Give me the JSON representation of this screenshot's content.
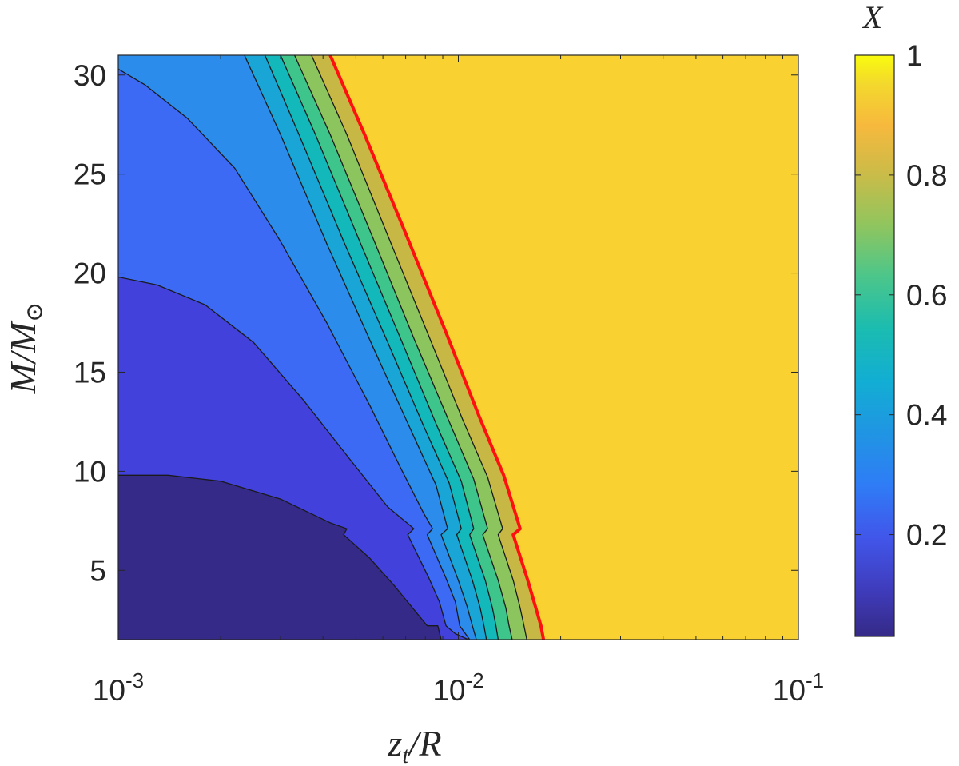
{
  "chart_data": {
    "type": "heatmap",
    "subtype": "filled-contour",
    "x_scale": "log",
    "xlim": [
      0.001,
      0.1
    ],
    "ylim": [
      1.5,
      31
    ],
    "xlabel_parts": [
      "z",
      "t",
      "/R"
    ],
    "ylabel_parts": [
      "M/M",
      "⊙"
    ],
    "colorbar_label": "X",
    "x_ticks": [
      {
        "value": 0.001,
        "base": "10",
        "exp": "-3"
      },
      {
        "value": 0.01,
        "base": "10",
        "exp": "-2"
      },
      {
        "value": 0.1,
        "base": "10",
        "exp": "-1"
      }
    ],
    "y_ticks": [
      {
        "value": 5,
        "label": "5"
      },
      {
        "value": 10,
        "label": "10"
      },
      {
        "value": 15,
        "label": "15"
      },
      {
        "value": 20,
        "label": "20"
      },
      {
        "value": 25,
        "label": "25"
      },
      {
        "value": 30,
        "label": "30"
      }
    ],
    "colorbar_ticks": [
      {
        "value": 0.2,
        "label": "0.2"
      },
      {
        "value": 0.4,
        "label": "0.4"
      },
      {
        "value": 0.6,
        "label": "0.6"
      },
      {
        "value": 0.8,
        "label": "0.8"
      },
      {
        "value": 1,
        "label": "1"
      }
    ],
    "colorbar_range": [
      0.03,
      1.0
    ],
    "colormap": "parula",
    "levels": [
      {
        "x_value": 0.02,
        "color": "#352a87"
      },
      {
        "x_value": 0.1,
        "color": "#4241dc"
      },
      {
        "x_value": 0.2,
        "color": "#3c6af5"
      },
      {
        "x_value": 0.3,
        "color": "#2b8ceb"
      },
      {
        "x_value": 0.4,
        "color": "#19a6d6"
      },
      {
        "x_value": 0.5,
        "color": "#12b8ba"
      },
      {
        "x_value": 0.6,
        "color": "#3ec58c"
      },
      {
        "x_value": 0.7,
        "color": "#8cc45e"
      },
      {
        "x_value": 0.8,
        "color": "#c7b845"
      },
      {
        "x_value": 0.9,
        "color": "#f9d130"
      }
    ],
    "contours": [
      {
        "level": 0.1,
        "points": [
          [
            0.001,
            9.8
          ],
          [
            0.0014,
            9.8
          ],
          [
            0.002,
            9.5
          ],
          [
            0.003,
            8.6
          ],
          [
            0.0042,
            7.4
          ],
          [
            0.0047,
            7.1
          ],
          [
            0.0046,
            6.8
          ],
          [
            0.0055,
            5.6
          ],
          [
            0.0065,
            4.2
          ],
          [
            0.0075,
            2.9
          ],
          [
            0.0081,
            2.2
          ],
          [
            0.0087,
            2.2
          ],
          [
            0.0089,
            1.5
          ]
        ]
      },
      {
        "level": 0.2,
        "points": [
          [
            0.001,
            19.8
          ],
          [
            0.0013,
            19.4
          ],
          [
            0.0018,
            18.4
          ],
          [
            0.0025,
            16.5
          ],
          [
            0.0035,
            13.6
          ],
          [
            0.0048,
            10.6
          ],
          [
            0.0062,
            8.2
          ],
          [
            0.0074,
            7.1
          ],
          [
            0.0071,
            6.8
          ],
          [
            0.0082,
            4.6
          ],
          [
            0.0088,
            3.4
          ],
          [
            0.0092,
            2.2
          ],
          [
            0.0098,
            1.8
          ],
          [
            0.0107,
            1.5
          ]
        ]
      },
      {
        "level": 0.3,
        "points": [
          [
            0.001,
            30.3
          ],
          [
            0.0012,
            29.5
          ],
          [
            0.0016,
            27.8
          ],
          [
            0.0022,
            25.3
          ],
          [
            0.003,
            21.6
          ],
          [
            0.0041,
            17.5
          ],
          [
            0.0055,
            13.3
          ],
          [
            0.0068,
            10.1
          ],
          [
            0.0079,
            7.9
          ],
          [
            0.0084,
            7.1
          ],
          [
            0.0081,
            6.8
          ],
          [
            0.0092,
            4.6
          ],
          [
            0.0098,
            3.4
          ],
          [
            0.0101,
            2.2
          ],
          [
            0.0108,
            1.5
          ]
        ]
      },
      {
        "level": 0.4,
        "points": [
          [
            0.00235,
            31
          ],
          [
            0.003,
            27
          ],
          [
            0.0041,
            21.5
          ],
          [
            0.0056,
            16.3
          ],
          [
            0.0072,
            12.2
          ],
          [
            0.0086,
            9.3
          ],
          [
            0.0093,
            7.1
          ],
          [
            0.0089,
            6.8
          ],
          [
            0.01,
            4.5
          ],
          [
            0.0106,
            3.2
          ],
          [
            0.011,
            2.2
          ],
          [
            0.0113,
            1.5
          ]
        ]
      },
      {
        "level": 0.5,
        "points": [
          [
            0.0027,
            31
          ],
          [
            0.0034,
            27
          ],
          [
            0.0046,
            21.6
          ],
          [
            0.0062,
            16.5
          ],
          [
            0.0079,
            12.3
          ],
          [
            0.0094,
            9.4
          ],
          [
            0.0102,
            7.1
          ],
          [
            0.0099,
            6.8
          ],
          [
            0.011,
            4.5
          ],
          [
            0.0116,
            3.1
          ],
          [
            0.0119,
            2.2
          ],
          [
            0.0121,
            1.5
          ]
        ]
      },
      {
        "level": 0.6,
        "points": [
          [
            0.003,
            31
          ],
          [
            0.0038,
            27
          ],
          [
            0.0051,
            21.7
          ],
          [
            0.0068,
            16.6
          ],
          [
            0.0086,
            12.4
          ],
          [
            0.0102,
            9.5
          ],
          [
            0.0111,
            7.1
          ],
          [
            0.0108,
            6.8
          ],
          [
            0.012,
            4.5
          ],
          [
            0.0126,
            3.1
          ],
          [
            0.0129,
            2.2
          ],
          [
            0.0131,
            1.5
          ]
        ]
      },
      {
        "level": 0.7,
        "points": [
          [
            0.0033,
            31
          ],
          [
            0.0042,
            27
          ],
          [
            0.0056,
            21.8
          ],
          [
            0.0074,
            16.7
          ],
          [
            0.0094,
            12.5
          ],
          [
            0.0111,
            9.6
          ],
          [
            0.0122,
            7.1
          ],
          [
            0.0118,
            6.8
          ],
          [
            0.0131,
            4.5
          ],
          [
            0.0138,
            3.1
          ],
          [
            0.0141,
            2.2
          ],
          [
            0.0144,
            1.5
          ]
        ]
      },
      {
        "level": 0.8,
        "points": [
          [
            0.0037,
            31
          ],
          [
            0.0047,
            27
          ],
          [
            0.0062,
            21.9
          ],
          [
            0.0082,
            16.8
          ],
          [
            0.0103,
            12.6
          ],
          [
            0.0122,
            9.7
          ],
          [
            0.0135,
            7.1
          ],
          [
            0.0131,
            6.8
          ],
          [
            0.0145,
            4.5
          ],
          [
            0.0152,
            3.1
          ],
          [
            0.0156,
            2.2
          ],
          [
            0.0159,
            1.5
          ]
        ]
      },
      {
        "level": 0.9,
        "color": "#ff1010",
        "points": [
          [
            0.0042,
            31
          ],
          [
            0.0053,
            27
          ],
          [
            0.007,
            22
          ],
          [
            0.0092,
            17
          ],
          [
            0.0115,
            12.8
          ],
          [
            0.0136,
            9.8
          ],
          [
            0.0152,
            7.1
          ],
          [
            0.0145,
            6.8
          ],
          [
            0.016,
            4.5
          ],
          [
            0.0169,
            3.1
          ],
          [
            0.0175,
            2.2
          ],
          [
            0.0178,
            1.5
          ]
        ]
      }
    ]
  }
}
